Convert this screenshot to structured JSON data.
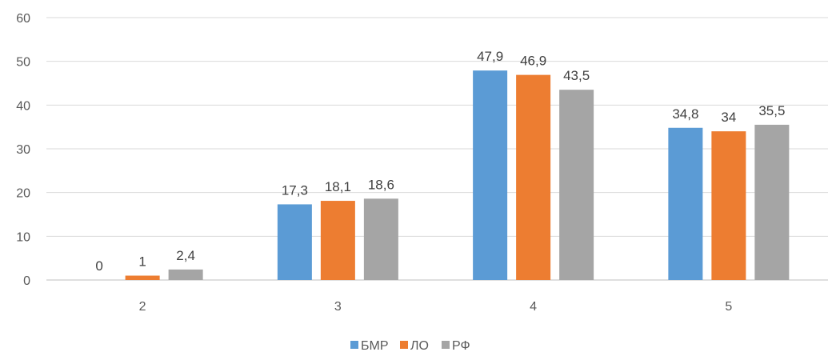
{
  "chart_data": {
    "type": "bar",
    "title": "",
    "xlabel": "",
    "ylabel": "",
    "categories": [
      "2",
      "3",
      "4",
      "5"
    ],
    "series": [
      {
        "name": "БМР",
        "color": "#5B9BD5",
        "values": [
          0,
          17.3,
          47.9,
          34.8
        ],
        "labels": [
          "0",
          "17,3",
          "47,9",
          "34,8"
        ]
      },
      {
        "name": "ЛО",
        "color": "#ED7D31",
        "values": [
          1,
          18.1,
          46.9,
          34
        ],
        "labels": [
          "1",
          "18,1",
          "46,9",
          "34"
        ]
      },
      {
        "name": "РФ",
        "color": "#A5A5A5",
        "values": [
          2.4,
          18.6,
          43.5,
          35.5
        ],
        "labels": [
          "2,4",
          "18,6",
          "43,5",
          "35,5"
        ]
      }
    ],
    "ylim": [
      0,
      60
    ],
    "yticks": [
      0,
      10,
      20,
      30,
      40,
      50,
      60
    ],
    "grid": true,
    "legend_position": "bottom"
  }
}
